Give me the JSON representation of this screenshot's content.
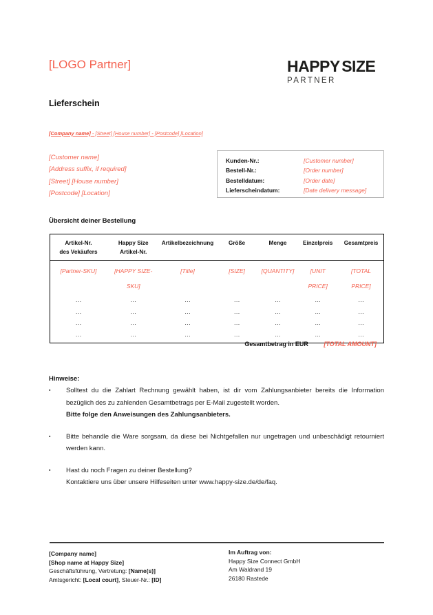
{
  "colors": {
    "accent": "#f4604e",
    "logo_black": "#1d1d1b",
    "partner_gray": "#3a3a38",
    "table_border": "#000000",
    "info_box_border": "#b5b5b5"
  },
  "header": {
    "logo_placeholder": "[LOGO Partner]",
    "brand_name": "HAPPY SIZE",
    "brand_subtitle": "PARTNER"
  },
  "doc_title": "Lieferschein",
  "sender_line": {
    "company": "[Company name]",
    "rest": " - [Street] [House number] - [Postcode] [Location]"
  },
  "customer_address": {
    "lines": [
      "[Customer name]",
      "[Address suffix, if required]",
      "[Street] [House number]",
      "[Postcode] [Location]"
    ]
  },
  "info_box": {
    "rows": [
      {
        "label": "Kunden-Nr.:",
        "value": "[Customer number]"
      },
      {
        "label": "Bestell-Nr.:",
        "value": "[Order number]"
      },
      {
        "label": "Bestelldatum:",
        "value": "[Order date]"
      },
      {
        "label": "Lieferscheindatum:",
        "value": "[Date delivery message]"
      }
    ]
  },
  "section_title": "Übersicht deiner Bestellung",
  "order_table": {
    "headers": [
      "Artikel-Nr.\ndes Vekäufers",
      "Happy Size\nArtikel-Nr.",
      "Artikelbezeichnung",
      "Größe",
      "Menge",
      "Einzelpreis",
      "Gesamtpreis"
    ],
    "rows": [
      [
        "[Partner-SKU]",
        "[HAPPY SIZE-\nSKU]",
        "[Title]",
        "[SIZE]",
        "[QUANTITY]",
        "[UNIT\nPRICE]",
        "[TOTAL\nPRICE]"
      ],
      [
        "…",
        "…",
        "…",
        "…",
        "…",
        "…",
        "…"
      ],
      [
        "…",
        "…",
        "…",
        "…",
        "…",
        "…",
        "…"
      ],
      [
        "…",
        "…",
        "…",
        "…",
        "…",
        "…",
        "…"
      ],
      [
        "…",
        "…",
        "…",
        "…",
        "…",
        "…",
        "…"
      ]
    ],
    "total_label": "Gesamtbetrag in EUR",
    "total_value": "[TOTAL AMOUNT]"
  },
  "notes": {
    "heading": "Hinweise:",
    "bullet_glyph": "▪",
    "items": [
      {
        "text": "Solltest du die Zahlart Rechnung gewählt haben, ist dir vom Zahlungsanbieter bereits die Information bezüglich des zu zahlenden Gesamtbetrags per E-Mail zugestellt worden.",
        "bold_line": "Bitte folge den Anweisungen des Zahlungsanbieters."
      },
      {
        "text": "Bitte behandle die Ware sorgsam, da diese bei Nichtgefallen nur ungetragen und unbeschädigt retourniert werden kann.",
        "bold_line": ""
      },
      {
        "text": "Hast du noch Fragen zu deiner Bestellung?",
        "line2": "Kontaktiere uns über unsere Hilfeseiten unter www.happy-size.de/de/faq."
      }
    ]
  },
  "footer": {
    "left": {
      "company": "[Company name]",
      "shop": "[Shop name at Happy Size]",
      "mgmt_prefix": "Geschäftsführung, Vertretung: ",
      "mgmt_bold": "[Name(s)]",
      "court_prefix": "Amtsgericht: ",
      "court_bold": "[Local court]",
      "court_mid": ", Steuer-Nr.: ",
      "court_bold2": "[ID]"
    },
    "right": {
      "heading": "Im Auftrag von:",
      "line1": "Happy Size Connect GmbH",
      "line2": "Am Waldrand 19",
      "line3": "26180 Rastede"
    }
  }
}
